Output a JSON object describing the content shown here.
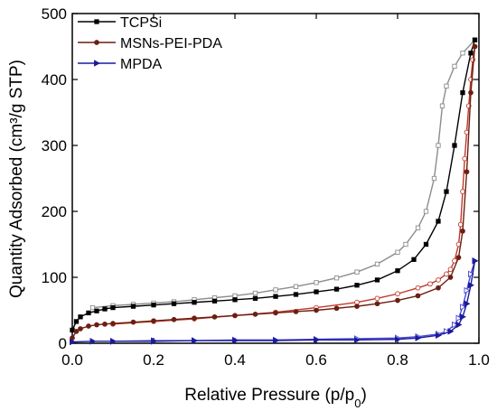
{
  "chart_data": {
    "type": "line",
    "xlabel": "Relative Pressure (p/p0)",
    "xlabel_main": "Relative Pressure (p/p",
    "xlabel_sub": "0",
    "xlabel_end": ")",
    "ylabel": "Quantity Adsorbed (cm³/g STP)",
    "xlim": [
      0.0,
      1.0
    ],
    "ylim": [
      0,
      500
    ],
    "xticks": [
      "0.0",
      "0.2",
      "0.4",
      "0.6",
      "0.8",
      "1.0"
    ],
    "yticks": [
      "0",
      "100",
      "200",
      "300",
      "400",
      "500"
    ],
    "legend_position": "top-left",
    "grid": false,
    "series": [
      {
        "name": "TCPSi",
        "color": "#000000",
        "desorption_color": "#8c8c8c",
        "marker": "square",
        "adsorption": {
          "x": [
            0.0,
            0.01,
            0.02,
            0.04,
            0.06,
            0.08,
            0.1,
            0.15,
            0.2,
            0.25,
            0.3,
            0.35,
            0.4,
            0.45,
            0.5,
            0.55,
            0.6,
            0.65,
            0.7,
            0.75,
            0.8,
            0.84,
            0.87,
            0.9,
            0.92,
            0.94,
            0.96,
            0.98,
            0.99
          ],
          "y": [
            20,
            33,
            40,
            46,
            49,
            52,
            54,
            56,
            58,
            60,
            62,
            64,
            66,
            68,
            71,
            74,
            78,
            82,
            88,
            96,
            110,
            127,
            150,
            185,
            230,
            300,
            380,
            440,
            460
          ]
        },
        "desorption": {
          "x": [
            0.99,
            0.96,
            0.94,
            0.92,
            0.91,
            0.9,
            0.89,
            0.87,
            0.85,
            0.82,
            0.8,
            0.75,
            0.7,
            0.65,
            0.6,
            0.55,
            0.5,
            0.45,
            0.4,
            0.35,
            0.3,
            0.25,
            0.2,
            0.15,
            0.1,
            0.05
          ],
          "y": [
            460,
            440,
            420,
            390,
            360,
            300,
            250,
            200,
            175,
            150,
            138,
            120,
            108,
            99,
            92,
            86,
            81,
            76,
            72,
            69,
            66,
            63,
            61,
            59,
            57,
            54
          ]
        }
      },
      {
        "name": "MSNs-PEI-PDA",
        "color": "#6b1f12",
        "desorption_color": "#c0392b",
        "marker": "circle",
        "adsorption": {
          "x": [
            0.0,
            0.01,
            0.02,
            0.04,
            0.06,
            0.08,
            0.1,
            0.15,
            0.2,
            0.25,
            0.3,
            0.35,
            0.4,
            0.45,
            0.5,
            0.55,
            0.6,
            0.65,
            0.7,
            0.75,
            0.8,
            0.85,
            0.9,
            0.93,
            0.95,
            0.96,
            0.97,
            0.98,
            0.99
          ],
          "y": [
            8,
            18,
            22,
            26,
            28,
            29,
            30,
            32,
            34,
            36,
            38,
            40,
            42,
            44,
            46,
            48,
            50,
            53,
            56,
            60,
            65,
            72,
            84,
            100,
            130,
            170,
            260,
            380,
            450
          ]
        },
        "desorption": {
          "x": [
            0.99,
            0.985,
            0.98,
            0.975,
            0.97,
            0.965,
            0.96,
            0.955,
            0.95,
            0.94,
            0.93,
            0.92,
            0.9,
            0.88,
            0.85,
            0.8,
            0.75,
            0.7,
            0.6,
            0.5,
            0.4,
            0.3,
            0.2,
            0.1
          ],
          "y": [
            450,
            430,
            400,
            360,
            320,
            280,
            230,
            180,
            150,
            125,
            112,
            105,
            96,
            90,
            84,
            75,
            68,
            62,
            54,
            47,
            42,
            37,
            33,
            29
          ]
        }
      },
      {
        "name": "MPDA",
        "color": "#1a1a9e",
        "desorption_color": "#4a4ad0",
        "marker": "triangle-right",
        "adsorption": {
          "x": [
            0.0,
            0.05,
            0.1,
            0.2,
            0.3,
            0.4,
            0.5,
            0.6,
            0.7,
            0.8,
            0.85,
            0.9,
            0.93,
            0.95,
            0.96,
            0.97,
            0.98,
            0.99
          ],
          "y": [
            2,
            3,
            3,
            3,
            4,
            4,
            4,
            5,
            5,
            6,
            8,
            12,
            18,
            28,
            40,
            60,
            88,
            125
          ]
        },
        "desorption": {
          "x": [
            0.99,
            0.98,
            0.97,
            0.96,
            0.95,
            0.94,
            0.92,
            0.9,
            0.85,
            0.8,
            0.7,
            0.6,
            0.5,
            0.4,
            0.3,
            0.2,
            0.1
          ],
          "y": [
            125,
            105,
            80,
            55,
            38,
            28,
            18,
            14,
            10,
            8,
            7,
            6,
            5,
            5,
            4,
            4,
            3
          ]
        }
      }
    ]
  }
}
